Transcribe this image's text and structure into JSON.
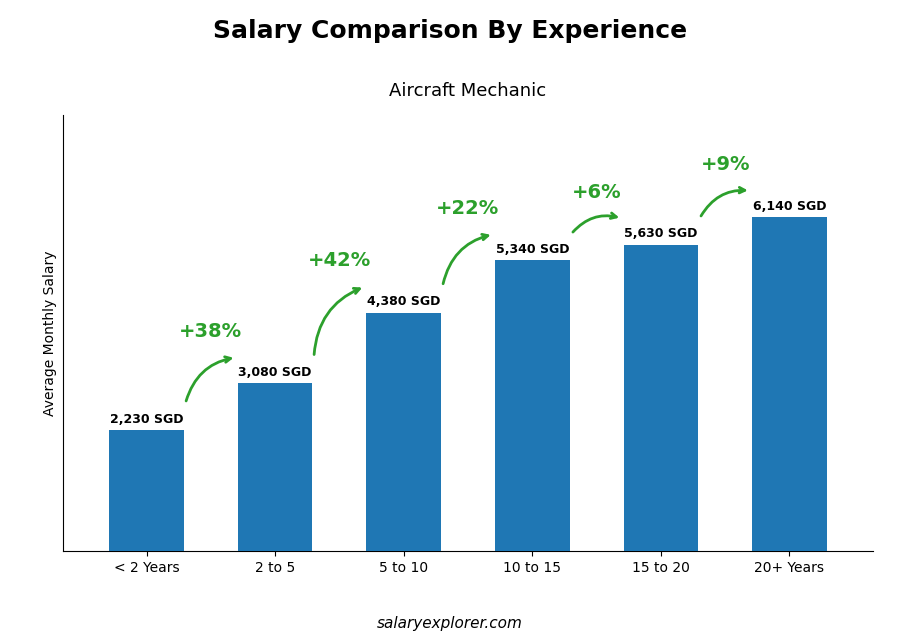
{
  "chart_data": {
    "type": "bar",
    "title": "Salary Comparison By Experience",
    "subtitle": "Aircraft Mechanic",
    "y_label": "Average Monthly Salary",
    "categories": [
      "< 2 Years",
      "2 to 5",
      "5 to 10",
      "10 to 15",
      "15 to 20",
      "20+ Years"
    ],
    "values": [
      2230,
      3080,
      4380,
      5340,
      5630,
      6140
    ],
    "data_labels": true,
    "value_labels": [
      "2,230 SGD",
      "3,080 SGD",
      "4,380 SGD",
      "5,340 SGD",
      "5,630 SGD",
      "6,140 SGD"
    ],
    "annotations": [
      "+38%",
      "+42%",
      "+22%",
      "+6%",
      "+9%"
    ],
    "footer": "salaryexplorer.com",
    "ylim": [
      0,
      8000
    ],
    "tick_labels": "x",
    "grid": false
  }
}
